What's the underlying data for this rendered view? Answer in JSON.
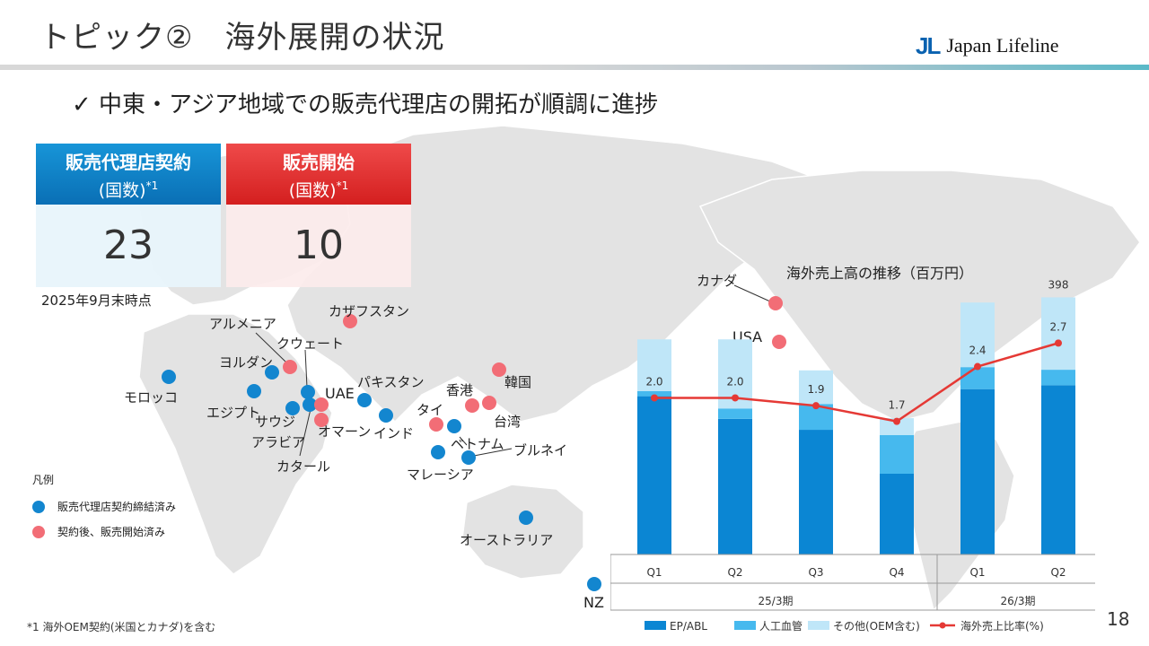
{
  "title": "トピック②　海外展開の状況",
  "logo": {
    "mark": "JL",
    "text": "Japan Lifeline"
  },
  "subhead": "✓ 中東・アジア地域での販売代理店の開拓が順調に進捗",
  "kpis": [
    {
      "title": "販売代理店契約",
      "subtitle": "(国数)",
      "note": "*1",
      "value": "23",
      "color": "#0a7cc4"
    },
    {
      "title": "販売開始",
      "subtitle": "(国数)",
      "note": "*1",
      "value": "10",
      "color": "#e12d2d"
    }
  ],
  "as_of": "2025年9月末時点",
  "countries": {
    "canada": "カナダ",
    "usa": "USA",
    "morocco": "モロッコ",
    "egypt": "エジプト",
    "jordan": "ヨルダン",
    "armenia": "アルメニア",
    "kuwait": "クウェート",
    "kazakhstan": "カザフスタン",
    "uae": "UAE",
    "pakistan": "パキスタン",
    "saudi": "サウジ",
    "arabia": "アラビア",
    "oman": "オマーン",
    "qatar": "カタール",
    "india": "インド",
    "hongkong": "香港",
    "korea": "韓国",
    "thailand": "タイ",
    "taiwan": "台湾",
    "vietnam": "ベトナム",
    "brunei": "ブルネイ",
    "malaysia": "マレーシア",
    "australia": "オーストラリア",
    "nz": "NZ"
  },
  "legend": {
    "title": "凡例",
    "contracted": "販売代理店契約締結済み",
    "started": "契約後、販売開始済み",
    "blue": "#1386cf",
    "red": "#f26d76"
  },
  "footnote": "*1 海外OEM契約(米国とカナダ)を含む",
  "page_number": "18",
  "chart_data": {
    "type": "bar",
    "title": "海外売上高の推移（百万円）",
    "categories": [
      "Q1",
      "Q2",
      "Q3",
      "Q4",
      "Q1",
      "Q2"
    ],
    "groups": [
      {
        "label": "25/3期",
        "count": 4
      },
      {
        "label": "26/3期",
        "count": 2
      }
    ],
    "series": [
      {
        "name": "EP/ABL",
        "color": "#0b86d3",
        "values": [
          245,
          210,
          193,
          125,
          256,
          262
        ]
      },
      {
        "name": "人工血管",
        "color": "#46b9ee",
        "values": [
          8,
          16,
          40,
          60,
          34,
          24
        ]
      },
      {
        "name": "その他(OEM含む)",
        "color": "#bfe6f8",
        "values": [
          80,
          107,
          52,
          26,
          100,
          112
        ]
      }
    ],
    "line_series": {
      "name": "海外売上比率(%)",
      "color": "#e53935",
      "values": [
        2.0,
        2.0,
        1.9,
        1.7,
        2.4,
        2.7
      ]
    },
    "total_labels": [
      "",
      "",
      "",
      "",
      "",
      "398"
    ],
    "ylim": [
      0,
      400
    ],
    "line_ylim": [
      0,
      3.3
    ]
  }
}
